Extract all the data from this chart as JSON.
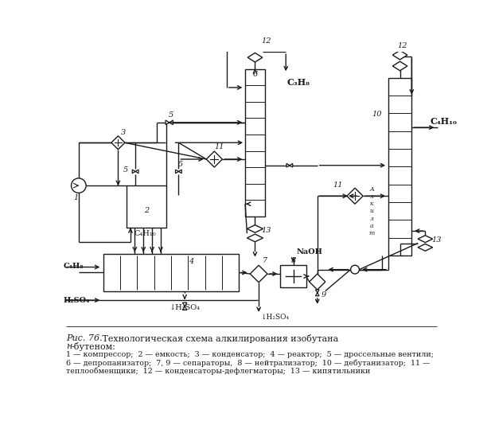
{
  "bg_color": "#ffffff",
  "line_color": "#1a1a1a",
  "text_color": "#1a1a1a",
  "caption_title_italic": "Рис. 76.",
  "caption_title_main": " Технологическая схема алкилирования изобутана ",
  "caption_title_italic2": "н",
  "caption_title_end": "-бутеном:",
  "legend_lines": [
    "1 — компрессор;  2 — емкость;  3 — конденсатор;  4 — реактор;  5 — дроссельные вентили;",
    "6 — депропанизатор;  7, 9 — сепараторы,  8 — нейтрализатор;  10 — дебутанизатор;  11 —",
    "теплообменщики;  12 — конденсаторы-дефлегматоры;  13 — кипятильники"
  ]
}
